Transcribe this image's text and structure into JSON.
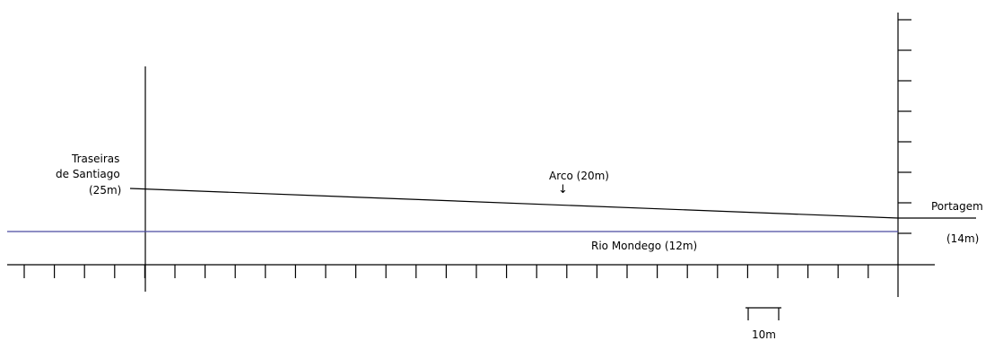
{
  "labels": {
    "traseiras_line1": "Traseiras",
    "traseiras_line2": "de Santiago",
    "traseiras_height": "(25m)",
    "arco": "Arco (20m)",
    "arco_arrow": "↓",
    "portagem": "Portagem",
    "portagem_height": "(14m)",
    "rio": "Rio Mondego (12m)",
    "scale": "10m"
  },
  "colors": {
    "line": "#000000",
    "river": "#4a4aa0"
  }
}
